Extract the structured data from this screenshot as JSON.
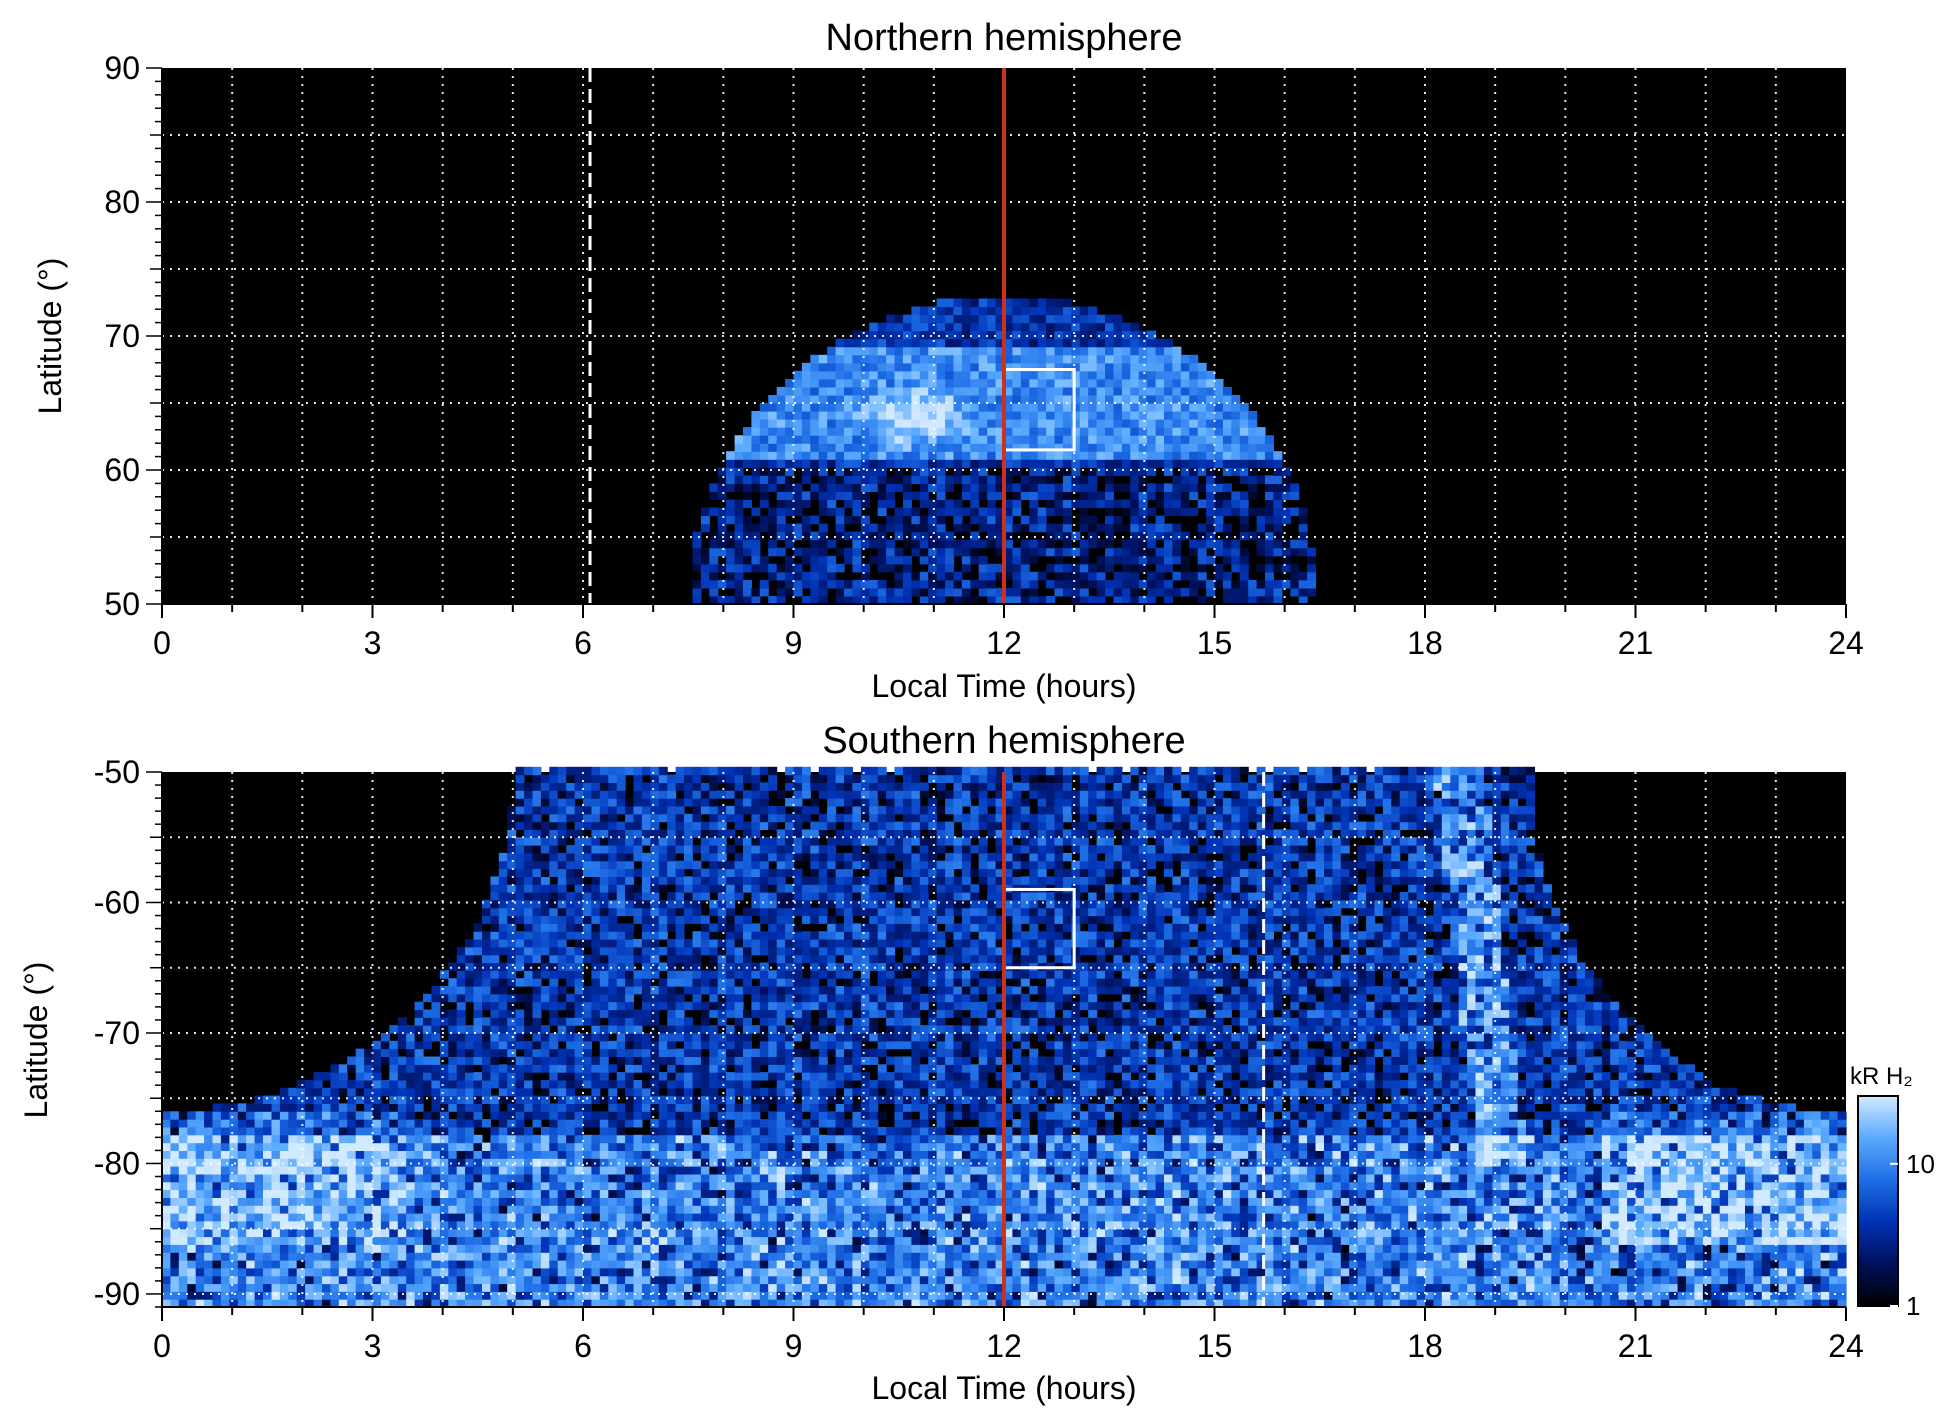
{
  "chart_data": [
    {
      "type": "heatmap",
      "title": "Northern hemisphere",
      "xlabel": "Local Time (hours)",
      "ylabel": "Latitude (°)",
      "xlim": [
        0,
        24
      ],
      "ylim": [
        50,
        90
      ],
      "xticks": [
        "0",
        "3",
        "6",
        "9",
        "12",
        "15",
        "18",
        "21",
        "24"
      ],
      "yticks": [
        "50",
        "60",
        "70",
        "80",
        "90"
      ],
      "grid": true,
      "emission_region": {
        "center_lt": 12,
        "equatorward_edge_lt_at_50": [
          7.6,
          16.6
        ],
        "poleward_edge_lat": 73,
        "bright_oval_lat": [
          61,
          69
        ],
        "brightest_patch": {
          "lt": 10.8,
          "lat": 64
        }
      },
      "noon_line_lt": 12,
      "dashed_line_lt": 6.1,
      "box": {
        "lt": [
          12,
          13
        ],
        "lat": [
          61.5,
          67.5
        ]
      }
    },
    {
      "type": "heatmap",
      "title": "Southern hemisphere",
      "xlabel": "Local Time (hours)",
      "ylabel": "Latitude (°)",
      "xlim": [
        0,
        24
      ],
      "ylim": [
        -91,
        -50
      ],
      "xticks": [
        "0",
        "3",
        "6",
        "9",
        "12",
        "15",
        "18",
        "21",
        "24"
      ],
      "yticks": [
        "-90",
        "-80",
        "-70",
        "-60",
        "-50"
      ],
      "grid": true,
      "emission_region": {
        "center_lt": 12,
        "dark_corner_edge_lt_at_50": [
          5,
          19.5
        ],
        "dark_corner_edge_lat_at_0": -76,
        "bright_arc_lt_at_50": 18.5
      },
      "noon_line_lt": 12,
      "dashed_line_lt": 15.7,
      "box": {
        "lt": [
          12,
          13
        ],
        "lat": [
          -65,
          -59
        ]
      }
    }
  ],
  "colorbar": {
    "label": "kR H₂",
    "ticks": [
      "1",
      "10"
    ],
    "tick_values": [
      1,
      10
    ],
    "range": [
      1,
      30
    ],
    "scale": "log",
    "colors": [
      "#000000",
      "#00105a",
      "#0032b4",
      "#1e6ee6",
      "#5aaaff",
      "#d2eaff"
    ]
  },
  "colors": {
    "background": "#000000",
    "noon_line": "#c8321e",
    "grid": "#ffffff",
    "box": "#ffffff"
  }
}
